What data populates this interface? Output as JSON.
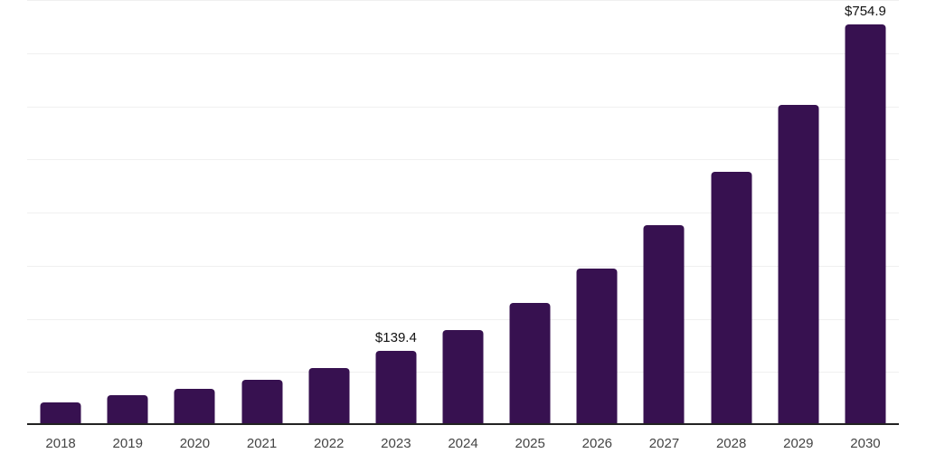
{
  "chart_data": {
    "type": "bar",
    "title": "",
    "xlabel": "",
    "ylabel": "",
    "categories": [
      "2018",
      "2019",
      "2020",
      "2021",
      "2022",
      "2023",
      "2024",
      "2025",
      "2026",
      "2027",
      "2028",
      "2029",
      "2030"
    ],
    "values": [
      43.0,
      55.5,
      67.5,
      84.5,
      107.4,
      139.4,
      178.3,
      229.4,
      294.8,
      375.4,
      476.5,
      602.6,
      754.9
    ],
    "value_labels": [
      null,
      null,
      null,
      null,
      null,
      "$139.4",
      null,
      null,
      null,
      null,
      null,
      null,
      "$754.9"
    ],
    "ylim": [
      0,
      800
    ],
    "gridline_step": 100,
    "grid": true,
    "legend": false,
    "y_axis_labels_visible": false,
    "colors": {
      "bar": "#371150",
      "axis_line": "#222222",
      "gridline": "#f0f0f0",
      "tick_label": "#444444",
      "value_label": "#111111",
      "background": "#ffffff"
    }
  }
}
